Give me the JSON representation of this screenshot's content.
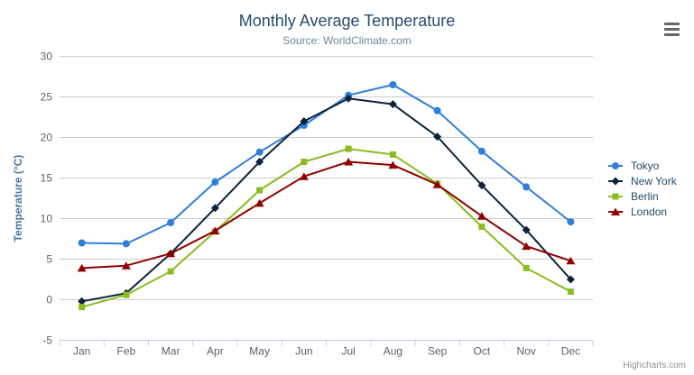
{
  "chart": {
    "credits": "Highcharts.com",
    "menu_icon": "hamburger-icon",
    "colors": {
      "title": "#274b6d",
      "subtitle": "#6d869f",
      "axis_title": "#4d759e",
      "tick_label": "#606060",
      "grid": "#cccccc",
      "axis_line": "#c0d0e0",
      "legend_text": "#274b6d",
      "credits": "#909090",
      "menu": "#666666",
      "background": "#ffffff"
    }
  },
  "chart_data": {
    "type": "line",
    "title": "Monthly Average Temperature",
    "subtitle": "Source: WorldClimate.com",
    "xlabel": "",
    "ylabel": "Temperature (°C)",
    "categories": [
      "Jan",
      "Feb",
      "Mar",
      "Apr",
      "May",
      "Jun",
      "Jul",
      "Aug",
      "Sep",
      "Oct",
      "Nov",
      "Dec"
    ],
    "yticks": [
      -5,
      0,
      5,
      10,
      15,
      20,
      25,
      30
    ],
    "ylim": [
      -5,
      30
    ],
    "grid": true,
    "legend_position": "right",
    "series": [
      {
        "name": "Tokyo",
        "color": "#2f7ed8",
        "marker": "circle",
        "values": [
          7.0,
          6.9,
          9.5,
          14.5,
          18.2,
          21.5,
          25.2,
          26.5,
          23.3,
          18.3,
          13.9,
          9.6
        ]
      },
      {
        "name": "New York",
        "color": "#0d233a",
        "marker": "diamond",
        "values": [
          -0.2,
          0.8,
          5.7,
          11.3,
          17.0,
          22.0,
          24.8,
          24.1,
          20.1,
          14.1,
          8.6,
          2.5
        ]
      },
      {
        "name": "Berlin",
        "color": "#8bbc21",
        "marker": "square",
        "values": [
          -0.9,
          0.6,
          3.5,
          8.4,
          13.5,
          17.0,
          18.6,
          17.9,
          14.3,
          9.0,
          3.9,
          1.0
        ]
      },
      {
        "name": "London",
        "color": "#910000",
        "marker": "triangle",
        "values": [
          3.9,
          4.2,
          5.7,
          8.5,
          11.9,
          15.2,
          17.0,
          16.6,
          14.2,
          10.3,
          6.6,
          4.8
        ]
      }
    ]
  }
}
